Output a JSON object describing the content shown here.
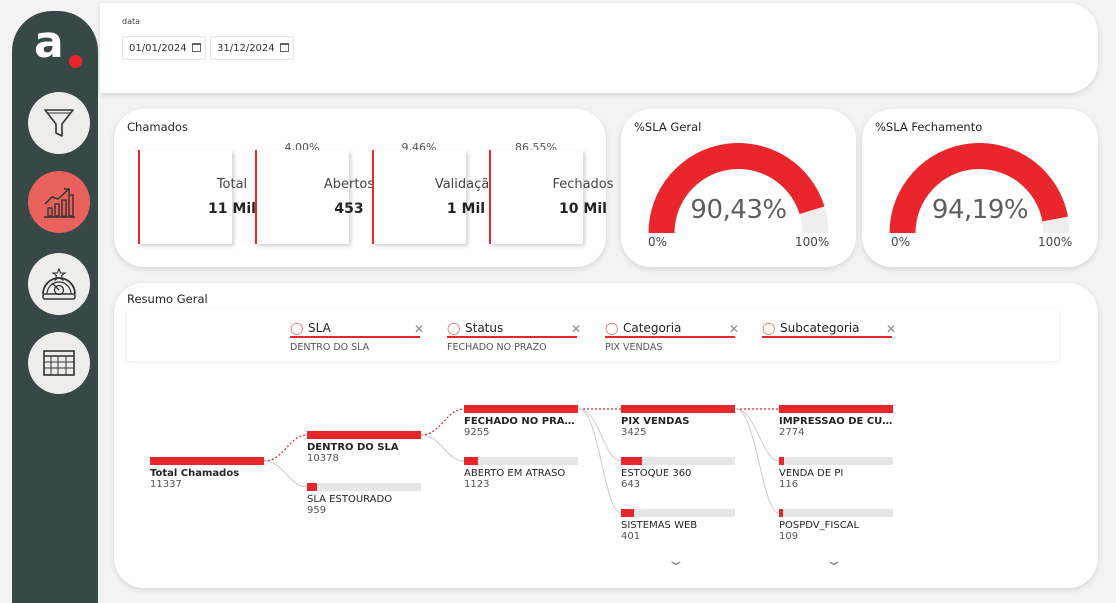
{
  "brand": {
    "letter": "a"
  },
  "sidebar": {
    "items": [
      {
        "icon": "funnel-icon"
      },
      {
        "icon": "chart-growth-icon",
        "active": true
      },
      {
        "icon": "gauge-icon"
      },
      {
        "icon": "table-icon"
      }
    ]
  },
  "filter": {
    "label": "data",
    "start": "01/01/2024",
    "end": "31/12/2024"
  },
  "chamados": {
    "title": "Chamados",
    "kpis": [
      {
        "label": "Total",
        "value": "11 Mil",
        "pct": ""
      },
      {
        "label": "Abertos",
        "value": "453",
        "pct": "4,00%"
      },
      {
        "label": "Validação",
        "value": "1 Mil",
        "pct": "9,46%"
      },
      {
        "label": "Fechados",
        "value": "10 Mil",
        "pct": "86,55%"
      }
    ]
  },
  "gauges": [
    {
      "title": "%SLA Geral",
      "value_text": "90,43%",
      "value": 90.43,
      "min": "0%",
      "max": "100%"
    },
    {
      "title": "%SLA Fechamento",
      "value_text": "94,19%",
      "value": 94.19,
      "min": "0%",
      "max": "100%"
    }
  ],
  "resumo": {
    "title": "Resumo Geral",
    "levels": [
      {
        "name": "SLA",
        "value": "DENTRO DO SLA"
      },
      {
        "name": "Status",
        "value": "FECHADO NO PRAZO"
      },
      {
        "name": "Categoria",
        "value": "PIX VENDAS"
      },
      {
        "name": "Subcategoria",
        "value": ""
      }
    ],
    "root": {
      "label": "Total Chamados",
      "value": "11337"
    },
    "columns": [
      [
        {
          "label": "DENTRO DO SLA",
          "value": "10378",
          "fill": 1.0,
          "selected": true
        },
        {
          "label": "SLA ESTOURADO",
          "value": "959",
          "fill": 0.092,
          "selected": false
        }
      ],
      [
        {
          "label": "FECHADO NO PRAZO",
          "value": "9255",
          "fill": 1.0,
          "selected": true
        },
        {
          "label": "ABERTO EM ATRASO",
          "value": "1123",
          "fill": 0.121,
          "selected": false
        }
      ],
      [
        {
          "label": "PIX VENDAS",
          "value": "3425",
          "fill": 1.0,
          "selected": true
        },
        {
          "label": "ESTOQUE 360",
          "value": "643",
          "fill": 0.188,
          "selected": false
        },
        {
          "label": "SISTEMAS WEB",
          "value": "401",
          "fill": 0.117,
          "selected": false
        }
      ],
      [
        {
          "label": "IMPRESSÃO DE CUP...",
          "value": "2774",
          "fill": 1.0,
          "selected": true
        },
        {
          "label": "VENDA DE PI",
          "value": "116",
          "fill": 0.042,
          "selected": false
        },
        {
          "label": "POSPDV_FISCAL",
          "value": "109",
          "fill": 0.039,
          "selected": false
        }
      ]
    ]
  },
  "colors": {
    "accent": "#e8262b",
    "sidebar": "#374846",
    "active_nav": "#e8615d"
  }
}
